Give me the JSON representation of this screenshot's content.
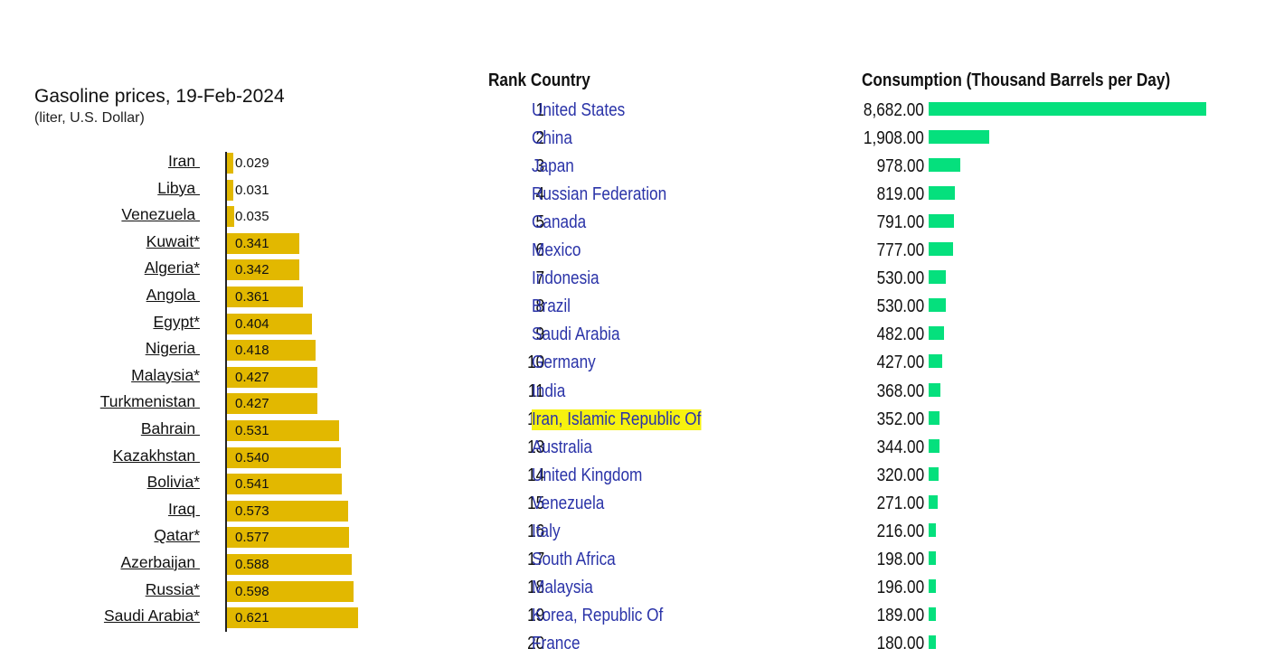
{
  "chart_data": [
    {
      "type": "bar",
      "orientation": "horizontal",
      "title": "Gasoline prices, 19-Feb-2024",
      "subtitle": "(liter, U.S. Dollar)",
      "categories": [
        "Iran ",
        "Libya ",
        "Venezuela ",
        "Kuwait*",
        "Algeria*",
        "Angola ",
        "Egypt*",
        "Nigeria ",
        "Malaysia*",
        "Turkmenistan ",
        "Bahrain ",
        "Kazakhstan ",
        "Bolivia*",
        "Iraq ",
        "Qatar*",
        "Azerbaijan ",
        "Russia*",
        "Saudi Arabia*"
      ],
      "values": [
        0.029,
        0.031,
        0.035,
        0.341,
        0.342,
        0.361,
        0.404,
        0.418,
        0.427,
        0.427,
        0.531,
        0.54,
        0.541,
        0.573,
        0.577,
        0.588,
        0.598,
        0.621
      ],
      "value_labels": [
        "0.029",
        "0.031",
        "0.035",
        "0.341",
        "0.342",
        "0.361",
        "0.404",
        "0.418",
        "0.427",
        "0.427",
        "0.531",
        "0.540",
        "0.541",
        "0.573",
        "0.577",
        "0.588",
        "0.598",
        "0.621"
      ],
      "bar_color": "#e2b800",
      "xlim": [
        0,
        0.62
      ],
      "grid": false
    },
    {
      "type": "bar",
      "orientation": "horizontal",
      "headers": {
        "rank_country": "Rank Country",
        "consumption": "Consumption (Thousand Barrels per Day)"
      },
      "ranks": [
        "1",
        "2",
        "3",
        "4",
        "5",
        "6",
        "7",
        "8",
        "9",
        "10",
        "11",
        "12",
        "13",
        "14",
        "15",
        "16",
        "17",
        "18",
        "19",
        "20"
      ],
      "categories": [
        "United States",
        "China",
        "Japan",
        "Russian Federation",
        "Canada",
        "Mexico",
        "Indonesia",
        "Brazil",
        "Saudi Arabia",
        "Germany",
        "India",
        "Iran, Islamic Republic Of",
        "Australia",
        "United Kingdom",
        "Venezuela",
        "Italy",
        "South Africa",
        "Malaysia",
        "Korea, Republic Of",
        "France"
      ],
      "values": [
        8682,
        1908,
        978,
        819,
        791,
        777,
        530,
        530,
        482,
        427,
        368,
        352,
        344,
        320,
        271,
        216,
        198,
        196,
        189,
        180
      ],
      "value_labels": [
        "8,682.00",
        "1,908.00",
        "978.00",
        "819.00",
        "791.00",
        "777.00",
        "530.00",
        "530.00",
        "482.00",
        "427.00",
        "368.00",
        "352.00",
        "344.00",
        "320.00",
        "271.00",
        "216.00",
        "198.00",
        "196.00",
        "189.00",
        "180.00"
      ],
      "highlighted": "Iran, Islamic Republic Of",
      "highlight_color": "#f7f20f",
      "link_color": "#2a33a8",
      "bar_color": "#05e07d",
      "xlim": [
        0,
        8682
      ],
      "grid": false
    }
  ]
}
